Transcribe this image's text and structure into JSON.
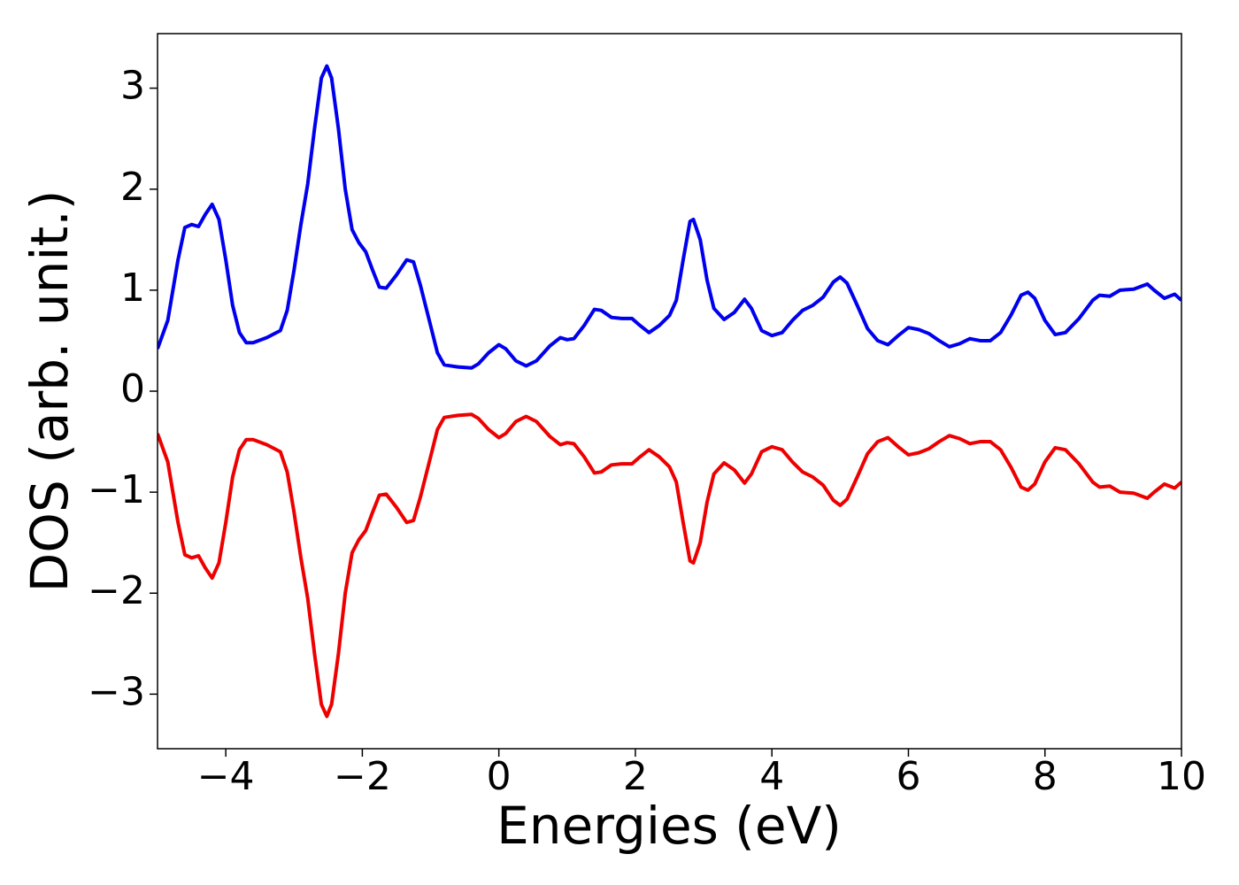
{
  "chart_data": {
    "type": "line",
    "xlabel": "Energies (eV)",
    "ylabel": "DOS (arb. unit.)",
    "x": [
      -5.0,
      -4.85,
      -4.7,
      -4.6,
      -4.5,
      -4.4,
      -4.3,
      -4.2,
      -4.1,
      -4.0,
      -3.9,
      -3.8,
      -3.7,
      -3.6,
      -3.4,
      -3.2,
      -3.1,
      -3.0,
      -2.9,
      -2.8,
      -2.7,
      -2.6,
      -2.52,
      -2.45,
      -2.35,
      -2.25,
      -2.15,
      -2.05,
      -1.95,
      -1.85,
      -1.75,
      -1.65,
      -1.5,
      -1.35,
      -1.25,
      -1.15,
      -1.0,
      -0.9,
      -0.8,
      -0.6,
      -0.4,
      -0.3,
      -0.15,
      0.0,
      0.1,
      0.25,
      0.4,
      0.55,
      0.75,
      0.9,
      1.0,
      1.1,
      1.25,
      1.4,
      1.5,
      1.65,
      1.8,
      1.95,
      2.05,
      2.2,
      2.35,
      2.5,
      2.6,
      2.7,
      2.8,
      2.85,
      2.95,
      3.05,
      3.15,
      3.3,
      3.45,
      3.6,
      3.7,
      3.85,
      4.0,
      4.15,
      4.3,
      4.45,
      4.6,
      4.75,
      4.9,
      5.0,
      5.1,
      5.25,
      5.4,
      5.55,
      5.7,
      5.85,
      6.0,
      6.15,
      6.3,
      6.45,
      6.6,
      6.75,
      6.9,
      7.05,
      7.2,
      7.35,
      7.5,
      7.65,
      7.75,
      7.85,
      8.0,
      8.15,
      8.3,
      8.5,
      8.7,
      8.8,
      8.95,
      9.1,
      9.3,
      9.5,
      9.6,
      9.75,
      9.9,
      10.0
    ],
    "series": [
      {
        "color": "#0000ee",
        "values": [
          0.42,
          0.7,
          1.3,
          1.62,
          1.65,
          1.63,
          1.75,
          1.85,
          1.7,
          1.3,
          0.85,
          0.58,
          0.48,
          0.48,
          0.53,
          0.6,
          0.8,
          1.2,
          1.65,
          2.05,
          2.6,
          3.1,
          3.22,
          3.1,
          2.6,
          2.0,
          1.6,
          1.47,
          1.38,
          1.2,
          1.03,
          1.02,
          1.15,
          1.3,
          1.28,
          1.05,
          0.65,
          0.38,
          0.26,
          0.24,
          0.23,
          0.27,
          0.38,
          0.46,
          0.42,
          0.3,
          0.25,
          0.3,
          0.45,
          0.53,
          0.51,
          0.52,
          0.65,
          0.81,
          0.8,
          0.73,
          0.72,
          0.72,
          0.66,
          0.58,
          0.65,
          0.75,
          0.9,
          1.3,
          1.68,
          1.7,
          1.5,
          1.1,
          0.82,
          0.71,
          0.78,
          0.91,
          0.82,
          0.6,
          0.55,
          0.58,
          0.7,
          0.8,
          0.85,
          0.93,
          1.08,
          1.13,
          1.07,
          0.85,
          0.62,
          0.5,
          0.46,
          0.55,
          0.63,
          0.61,
          0.57,
          0.5,
          0.44,
          0.47,
          0.52,
          0.5,
          0.5,
          0.58,
          0.75,
          0.95,
          0.98,
          0.92,
          0.7,
          0.56,
          0.58,
          0.72,
          0.9,
          0.95,
          0.94,
          1.0,
          1.01,
          1.06,
          1.0,
          0.92,
          0.96,
          0.9
        ]
      },
      {
        "color": "#ee0000",
        "values": [
          -0.42,
          -0.7,
          -1.3,
          -1.62,
          -1.65,
          -1.63,
          -1.75,
          -1.85,
          -1.7,
          -1.3,
          -0.85,
          -0.58,
          -0.48,
          -0.48,
          -0.53,
          -0.6,
          -0.8,
          -1.2,
          -1.65,
          -2.05,
          -2.6,
          -3.1,
          -3.22,
          -3.1,
          -2.6,
          -2.0,
          -1.6,
          -1.47,
          -1.38,
          -1.2,
          -1.03,
          -1.02,
          -1.15,
          -1.3,
          -1.28,
          -1.05,
          -0.65,
          -0.38,
          -0.26,
          -0.24,
          -0.23,
          -0.27,
          -0.38,
          -0.46,
          -0.42,
          -0.3,
          -0.25,
          -0.3,
          -0.45,
          -0.53,
          -0.51,
          -0.52,
          -0.65,
          -0.81,
          -0.8,
          -0.73,
          -0.72,
          -0.72,
          -0.66,
          -0.58,
          -0.65,
          -0.75,
          -0.9,
          -1.3,
          -1.68,
          -1.7,
          -1.5,
          -1.1,
          -0.82,
          -0.71,
          -0.78,
          -0.91,
          -0.82,
          -0.6,
          -0.55,
          -0.58,
          -0.7,
          -0.8,
          -0.85,
          -0.93,
          -1.08,
          -1.13,
          -1.07,
          -0.85,
          -0.62,
          -0.5,
          -0.46,
          -0.55,
          -0.63,
          -0.61,
          -0.57,
          -0.5,
          -0.44,
          -0.47,
          -0.52,
          -0.5,
          -0.5,
          -0.58,
          -0.75,
          -0.95,
          -0.98,
          -0.92,
          -0.7,
          -0.56,
          -0.58,
          -0.72,
          -0.9,
          -0.95,
          -0.94,
          -1.0,
          -1.01,
          -1.06,
          -1.0,
          -0.92,
          -0.96,
          -0.9
        ]
      }
    ],
    "xlim": [
      -5,
      10
    ],
    "xticks": [
      {
        "value": -4,
        "label": "−4"
      },
      {
        "value": -2,
        "label": "−2"
      },
      0,
      2,
      4,
      6,
      8,
      10
    ],
    "ylim": [
      -3.54,
      3.54
    ],
    "yticks": [
      {
        "value": -3,
        "label": "−3"
      },
      {
        "value": -2,
        "label": "−2"
      },
      {
        "value": -1,
        "label": "−1"
      },
      0,
      1,
      2,
      3
    ],
    "grid": false
  }
}
